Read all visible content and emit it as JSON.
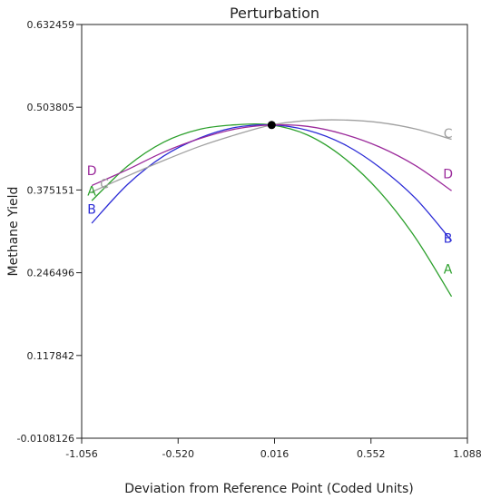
{
  "chart_data": {
    "type": "line",
    "title": "Perturbation",
    "xlabel": "Deviation from Reference Point (Coded Units)",
    "ylabel": "Methane Yield",
    "xlim": [
      -1.056,
      1.088
    ],
    "ylim": [
      -0.0108126,
      0.632459
    ],
    "x_ticks": [
      -1.056,
      -0.52,
      0.016,
      0.552,
      1.088
    ],
    "x_tick_labels": [
      "-1.056",
      "-0.520",
      "0.016",
      "0.552",
      "1.088"
    ],
    "y_ticks": [
      -0.0108126,
      0.117842,
      0.246496,
      0.375151,
      0.503805,
      0.632459
    ],
    "y_tick_labels": [
      "-0.0108126",
      "0.117842",
      "0.246496",
      "0.375151",
      "0.503805",
      "0.632459"
    ],
    "grid": false,
    "legend": "none",
    "reference_point": {
      "x": 0.0,
      "y": 0.4762
    },
    "series": [
      {
        "name": "A",
        "color": "#2ca02c",
        "x": [
          -1.0,
          -0.8,
          -0.6,
          -0.4,
          -0.2,
          0.0,
          0.2,
          0.4,
          0.6,
          0.8,
          1.0
        ],
        "y": [
          0.3585,
          0.4125,
          0.4495,
          0.4695,
          0.4765,
          0.4762,
          0.4605,
          0.4255,
          0.3725,
          0.3005,
          0.2095
        ]
      },
      {
        "name": "B",
        "color": "#2b2bd6",
        "x": [
          -1.0,
          -0.8,
          -0.6,
          -0.4,
          -0.2,
          0.0,
          0.2,
          0.4,
          0.6,
          0.8,
          1.0
        ],
        "y": [
          0.3235,
          0.384,
          0.428,
          0.456,
          0.4725,
          0.4762,
          0.468,
          0.4465,
          0.4105,
          0.362,
          0.296
        ]
      },
      {
        "name": "C",
        "color": "#a0a0a0",
        "x": [
          -1.0,
          -0.8,
          -0.6,
          -0.4,
          -0.2,
          0.0,
          0.2,
          0.4,
          0.6,
          0.8,
          1.0
        ],
        "y": [
          0.372,
          0.397,
          0.421,
          0.443,
          0.461,
          0.4762,
          0.483,
          0.484,
          0.48,
          0.47,
          0.454
        ]
      },
      {
        "name": "D",
        "color": "#9b2a9b",
        "x": [
          -1.0,
          -0.8,
          -0.6,
          -0.4,
          -0.2,
          0.0,
          0.2,
          0.4,
          0.6,
          0.8,
          1.0
        ],
        "y": [
          0.382,
          0.407,
          0.434,
          0.455,
          0.47,
          0.4762,
          0.474,
          0.462,
          0.442,
          0.413,
          0.374
        ]
      }
    ],
    "curve_labels": [
      {
        "text": "D",
        "series": "D",
        "x": -1.0,
        "y": 0.3985
      },
      {
        "text": "C",
        "series": "C",
        "x": -0.93,
        "y": 0.3775
      },
      {
        "text": "A",
        "series": "A",
        "x": -1.0,
        "y": 0.3665
      },
      {
        "text": "B",
        "series": "B",
        "x": -1.0,
        "y": 0.3385
      },
      {
        "text": "C",
        "series": "C",
        "x": 0.98,
        "y": 0.456
      },
      {
        "text": "D",
        "series": "D",
        "x": 0.98,
        "y": 0.3935
      },
      {
        "text": "B",
        "series": "B",
        "x": 0.98,
        "y": 0.2935
      },
      {
        "text": "A",
        "series": "A",
        "x": 0.98,
        "y": 0.245
      }
    ]
  }
}
